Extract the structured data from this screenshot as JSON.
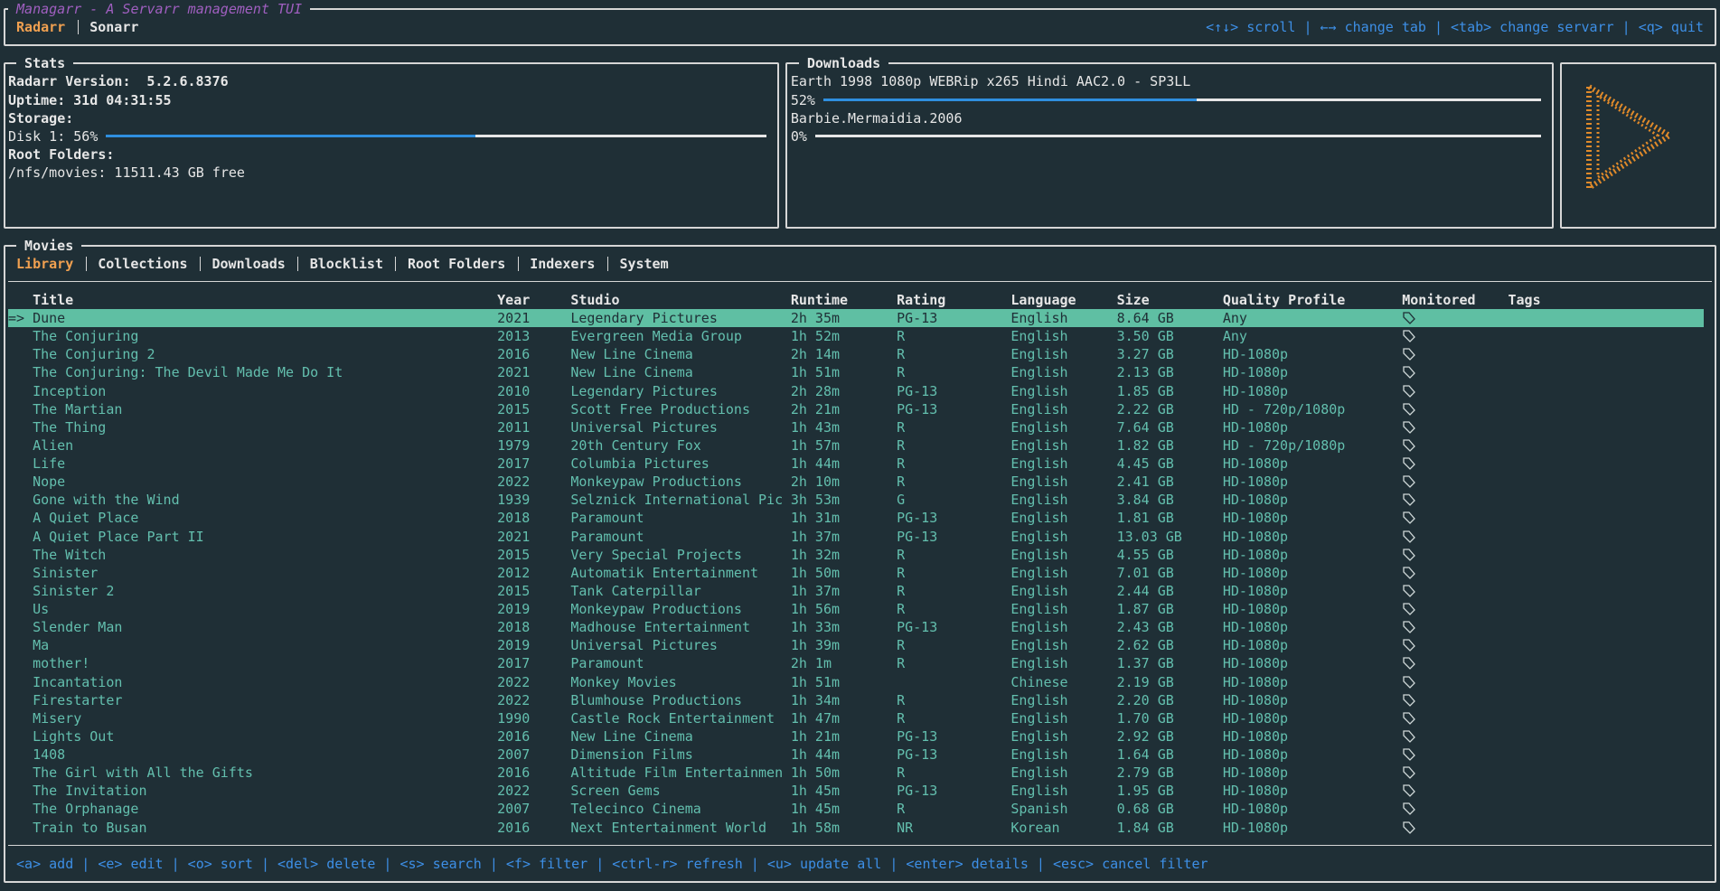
{
  "header": {
    "title": "Managarr - A Servarr management TUI",
    "tabs": [
      {
        "label": "Radarr",
        "selected": true
      },
      {
        "label": "Sonarr",
        "selected": false
      }
    ],
    "help": "<↑↓> scroll | ←→ change tab | <tab> change servarr | <q> quit"
  },
  "stats": {
    "title": "Stats",
    "version_label": "Radarr Version:",
    "version": "5.2.6.8376",
    "uptime_label": "Uptime:",
    "uptime": "31d 04:31:55",
    "storage_label": "Storage:",
    "disks": [
      {
        "label": "Disk 1: 56%",
        "percent": 56
      }
    ],
    "root_label": "Root Folders:",
    "root_folders": [
      "/nfs/movies: 11511.43 GB free"
    ]
  },
  "downloads": {
    "title": "Downloads",
    "items": [
      {
        "name": "Earth 1998 1080p WEBRip x265 Hindi AAC2.0 - SP3LL",
        "progress_label": "52%",
        "progress": 52
      },
      {
        "name": "Barbie.Mermaidia.2006",
        "progress_label": "0%",
        "progress": 0
      }
    ]
  },
  "movies": {
    "title": "Movies",
    "tabs": [
      {
        "label": "Library",
        "selected": true
      },
      {
        "label": "Collections",
        "selected": false
      },
      {
        "label": "Downloads",
        "selected": false
      },
      {
        "label": "Blocklist",
        "selected": false
      },
      {
        "label": "Root Folders",
        "selected": false
      },
      {
        "label": "Indexers",
        "selected": false
      },
      {
        "label": "System",
        "selected": false
      }
    ],
    "cursor": "=>",
    "columns": [
      "Title",
      "Year",
      "Studio",
      "Runtime",
      "Rating",
      "Language",
      "Size",
      "Quality Profile",
      "Monitored",
      "Tags"
    ],
    "rows": [
      {
        "cells": [
          "Dune",
          "2021",
          "Legendary Pictures",
          "2h 35m",
          "PG-13",
          "English",
          "8.64 GB",
          "Any"
        ],
        "monitored": true,
        "selected": true
      },
      {
        "cells": [
          "The Conjuring",
          "2013",
          "Evergreen Media Group",
          "1h 52m",
          "R",
          "English",
          "3.50 GB",
          "Any"
        ],
        "monitored": true,
        "selected": false
      },
      {
        "cells": [
          "The Conjuring 2",
          "2016",
          "New Line Cinema",
          "2h 14m",
          "R",
          "English",
          "3.27 GB",
          "HD-1080p"
        ],
        "monitored": true,
        "selected": false
      },
      {
        "cells": [
          "The Conjuring: The Devil Made Me Do It",
          "2021",
          "New Line Cinema",
          "1h 51m",
          "R",
          "English",
          "2.13 GB",
          "HD-1080p"
        ],
        "monitored": true,
        "selected": false
      },
      {
        "cells": [
          "Inception",
          "2010",
          "Legendary Pictures",
          "2h 28m",
          "PG-13",
          "English",
          "1.85 GB",
          "HD-1080p"
        ],
        "monitored": true,
        "selected": false
      },
      {
        "cells": [
          "The Martian",
          "2015",
          "Scott Free Productions",
          "2h 21m",
          "PG-13",
          "English",
          "2.22 GB",
          "HD - 720p/1080p"
        ],
        "monitored": true,
        "selected": false
      },
      {
        "cells": [
          "The Thing",
          "2011",
          "Universal Pictures",
          "1h 43m",
          "R",
          "English",
          "7.64 GB",
          "HD-1080p"
        ],
        "monitored": true,
        "selected": false
      },
      {
        "cells": [
          "Alien",
          "1979",
          "20th Century Fox",
          "1h 57m",
          "R",
          "English",
          "1.82 GB",
          "HD - 720p/1080p"
        ],
        "monitored": true,
        "selected": false
      },
      {
        "cells": [
          "Life",
          "2017",
          "Columbia Pictures",
          "1h 44m",
          "R",
          "English",
          "4.45 GB",
          "HD-1080p"
        ],
        "monitored": true,
        "selected": false
      },
      {
        "cells": [
          "Nope",
          "2022",
          "Monkeypaw Productions",
          "2h 10m",
          "R",
          "English",
          "2.41 GB",
          "HD-1080p"
        ],
        "monitored": true,
        "selected": false
      },
      {
        "cells": [
          "Gone with the Wind",
          "1939",
          "Selznick International Pic",
          "3h 53m",
          "G",
          "English",
          "3.84 GB",
          "HD-1080p"
        ],
        "monitored": true,
        "selected": false
      },
      {
        "cells": [
          "A Quiet Place",
          "2018",
          "Paramount",
          "1h 31m",
          "PG-13",
          "English",
          "1.81 GB",
          "HD-1080p"
        ],
        "monitored": true,
        "selected": false
      },
      {
        "cells": [
          "A Quiet Place Part II",
          "2021",
          "Paramount",
          "1h 37m",
          "PG-13",
          "English",
          "13.03 GB",
          "HD-1080p"
        ],
        "monitored": true,
        "selected": false
      },
      {
        "cells": [
          "The Witch",
          "2015",
          "Very Special Projects",
          "1h 32m",
          "R",
          "English",
          "4.55 GB",
          "HD-1080p"
        ],
        "monitored": true,
        "selected": false
      },
      {
        "cells": [
          "Sinister",
          "2012",
          "Automatik Entertainment",
          "1h 50m",
          "R",
          "English",
          "7.01 GB",
          "HD-1080p"
        ],
        "monitored": true,
        "selected": false
      },
      {
        "cells": [
          "Sinister 2",
          "2015",
          "Tank Caterpillar",
          "1h 37m",
          "R",
          "English",
          "2.44 GB",
          "HD-1080p"
        ],
        "monitored": true,
        "selected": false
      },
      {
        "cells": [
          "Us",
          "2019",
          "Monkeypaw Productions",
          "1h 56m",
          "R",
          "English",
          "1.87 GB",
          "HD-1080p"
        ],
        "monitored": true,
        "selected": false
      },
      {
        "cells": [
          "Slender Man",
          "2018",
          "Madhouse Entertainment",
          "1h 33m",
          "PG-13",
          "English",
          "2.43 GB",
          "HD-1080p"
        ],
        "monitored": true,
        "selected": false
      },
      {
        "cells": [
          "Ma",
          "2019",
          "Universal Pictures",
          "1h 39m",
          "R",
          "English",
          "2.62 GB",
          "HD-1080p"
        ],
        "monitored": true,
        "selected": false
      },
      {
        "cells": [
          "mother!",
          "2017",
          "Paramount",
          "2h 1m",
          "R",
          "English",
          "1.37 GB",
          "HD-1080p"
        ],
        "monitored": true,
        "selected": false
      },
      {
        "cells": [
          "Incantation",
          "2022",
          "Monkey Movies",
          "1h 51m",
          null,
          "Chinese",
          "2.19 GB",
          "HD-1080p"
        ],
        "monitored": true,
        "selected": false
      },
      {
        "cells": [
          "Firestarter",
          "2022",
          "Blumhouse Productions",
          "1h 34m",
          "R",
          "English",
          "2.20 GB",
          "HD-1080p"
        ],
        "monitored": true,
        "selected": false
      },
      {
        "cells": [
          "Misery",
          "1990",
          "Castle Rock Entertainment",
          "1h 47m",
          "R",
          "English",
          "1.70 GB",
          "HD-1080p"
        ],
        "monitored": true,
        "selected": false
      },
      {
        "cells": [
          "Lights Out",
          "2016",
          "New Line Cinema",
          "1h 21m",
          "PG-13",
          "English",
          "2.92 GB",
          "HD-1080p"
        ],
        "monitored": true,
        "selected": false
      },
      {
        "cells": [
          "1408",
          "2007",
          "Dimension Films",
          "1h 44m",
          "PG-13",
          "English",
          "1.64 GB",
          "HD-1080p"
        ],
        "monitored": true,
        "selected": false
      },
      {
        "cells": [
          "The Girl with All the Gifts",
          "2016",
          "Altitude Film Entertainmen",
          "1h 50m",
          "R",
          "English",
          "2.79 GB",
          "HD-1080p"
        ],
        "monitored": true,
        "selected": false
      },
      {
        "cells": [
          "The Invitation",
          "2022",
          "Screen Gems",
          "1h 45m",
          "PG-13",
          "English",
          "1.95 GB",
          "HD-1080p"
        ],
        "monitored": true,
        "selected": false
      },
      {
        "cells": [
          "The Orphanage",
          "2007",
          "Telecinco Cinema",
          "1h 45m",
          "R",
          "Spanish",
          "0.68 GB",
          "HD-1080p"
        ],
        "monitored": true,
        "selected": false
      },
      {
        "cells": [
          "Train to Busan",
          "2016",
          "Next Entertainment World",
          "1h 58m",
          "NR",
          "Korean",
          "1.84 GB",
          "HD-1080p"
        ],
        "monitored": true,
        "selected": false
      }
    ],
    "help": "<a> add | <e> edit | <o> sort | <del> delete | <s> search | <f> filter | <ctrl-r> refresh | <u> update all | <enter> details | <esc> cancel filter"
  }
}
